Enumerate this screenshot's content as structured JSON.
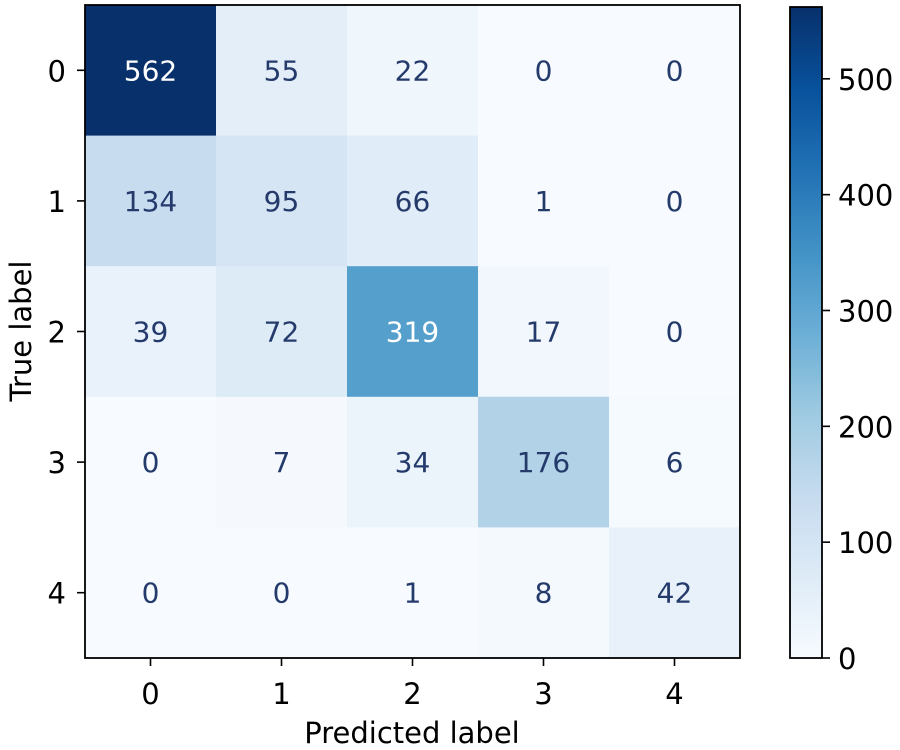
{
  "chart_data": {
    "type": "heatmap",
    "title": "",
    "xlabel": "Predicted label",
    "ylabel": "True label",
    "x_categories": [
      "0",
      "1",
      "2",
      "3",
      "4"
    ],
    "y_categories": [
      "0",
      "1",
      "2",
      "3",
      "4"
    ],
    "values": [
      [
        562,
        55,
        22,
        0,
        0
      ],
      [
        134,
        95,
        66,
        1,
        0
      ],
      [
        39,
        72,
        319,
        17,
        0
      ],
      [
        0,
        7,
        34,
        176,
        6
      ],
      [
        0,
        0,
        1,
        8,
        42
      ]
    ],
    "colormap": "Blues",
    "colorbar": {
      "range": [
        0,
        562
      ],
      "ticks": [
        0,
        100,
        200,
        300,
        400,
        500
      ],
      "tick_labels": [
        "0",
        "100",
        "200",
        "300",
        "400",
        "500"
      ]
    },
    "colors": {
      "text_light": "#ffffff",
      "text_dark": "#243a6b",
      "axis": "#000000"
    }
  }
}
